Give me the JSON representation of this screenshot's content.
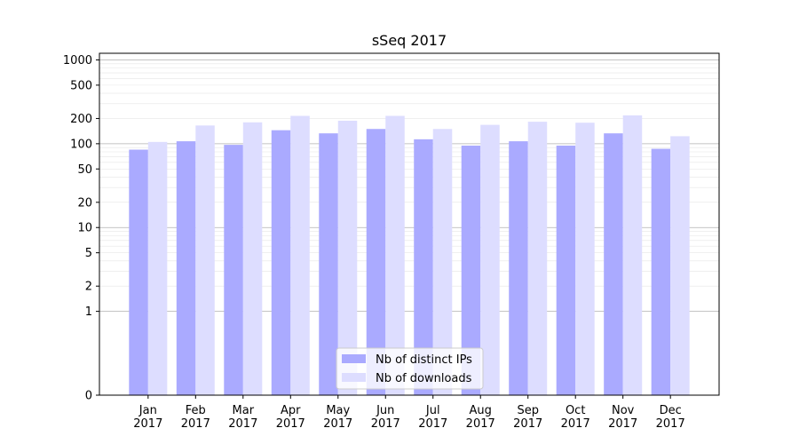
{
  "chart_data": {
    "type": "bar",
    "title": "sSeq 2017",
    "xlabel": "",
    "ylabel": "",
    "yscale": "symlog",
    "ylim": [
      0,
      1200
    ],
    "yticks": [
      0,
      1,
      2,
      5,
      10,
      20,
      50,
      100,
      200,
      500,
      1000
    ],
    "ytick_labels": [
      "0",
      "1",
      "2",
      "5",
      "10",
      "20",
      "50",
      "100",
      "200",
      "500",
      "1000"
    ],
    "grid": "horizontal",
    "legend_position": "bottom-center",
    "categories": [
      "Jan\n2017",
      "Feb\n2017",
      "Mar\n2017",
      "Apr\n2017",
      "May\n2017",
      "Jun\n2017",
      "Jul\n2017",
      "Aug\n2017",
      "Sep\n2017",
      "Oct\n2017",
      "Nov\n2017",
      "Dec\n2017"
    ],
    "category_lines": [
      [
        "Jan",
        "2017"
      ],
      [
        "Feb",
        "2017"
      ],
      [
        "Mar",
        "2017"
      ],
      [
        "Apr",
        "2017"
      ],
      [
        "May",
        "2017"
      ],
      [
        "Jun",
        "2017"
      ],
      [
        "Jul",
        "2017"
      ],
      [
        "Aug",
        "2017"
      ],
      [
        "Sep",
        "2017"
      ],
      [
        "Oct",
        "2017"
      ],
      [
        "Nov",
        "2017"
      ],
      [
        "Dec",
        "2017"
      ]
    ],
    "series": [
      {
        "name": "Nb of distinct IPs",
        "color": "#aaaaff",
        "values": [
          85,
          107,
          97,
          145,
          133,
          150,
          113,
          95,
          107,
          95,
          133,
          87
        ]
      },
      {
        "name": "Nb of downloads",
        "color": "#ddddff",
        "values": [
          105,
          165,
          180,
          215,
          188,
          215,
          150,
          168,
          183,
          178,
          218,
          123
        ]
      }
    ]
  }
}
